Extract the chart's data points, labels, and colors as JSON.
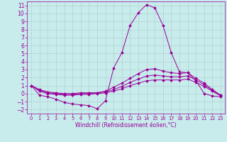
{
  "xlabel": "Windchill (Refroidissement éolien,°C)",
  "background_color": "#c8ecec",
  "line_color": "#990099",
  "grid_color": "#b0d0d0",
  "xlim": [
    -0.5,
    23.5
  ],
  "ylim": [
    -2.5,
    11.5
  ],
  "xticks": [
    0,
    1,
    2,
    3,
    4,
    5,
    6,
    7,
    8,
    9,
    10,
    11,
    12,
    13,
    14,
    15,
    16,
    17,
    18,
    19,
    20,
    21,
    22,
    23
  ],
  "yticks": [
    -2,
    -1,
    0,
    1,
    2,
    3,
    4,
    5,
    6,
    7,
    8,
    9,
    10,
    11
  ],
  "series": [
    {
      "x": [
        0,
        1,
        2,
        3,
        4,
        5,
        6,
        7,
        8,
        9,
        10,
        11,
        12,
        13,
        14,
        15,
        16,
        17,
        18,
        19,
        20,
        21,
        22,
        23
      ],
      "y": [
        1.0,
        -0.2,
        -0.4,
        -0.7,
        -1.1,
        -1.3,
        -1.4,
        -1.5,
        -1.9,
        -0.9,
        3.2,
        5.1,
        8.5,
        10.1,
        11.1,
        10.7,
        8.5,
        5.1,
        2.7,
        2.6,
        1.6,
        0.0,
        -0.3,
        -0.4
      ]
    },
    {
      "x": [
        0,
        1,
        2,
        3,
        4,
        5,
        6,
        7,
        8,
        9,
        10,
        11,
        12,
        13,
        14,
        15,
        16,
        17,
        18,
        19,
        20,
        21,
        22,
        23
      ],
      "y": [
        1.0,
        0.5,
        0.2,
        0.1,
        0.0,
        0.0,
        0.1,
        0.1,
        0.1,
        0.3,
        0.8,
        1.3,
        1.9,
        2.5,
        3.0,
        3.1,
        2.8,
        2.6,
        2.5,
        2.6,
        1.9,
        1.3,
        0.5,
        -0.2
      ]
    },
    {
      "x": [
        0,
        1,
        2,
        3,
        4,
        5,
        6,
        7,
        8,
        9,
        10,
        11,
        12,
        13,
        14,
        15,
        16,
        17,
        18,
        19,
        20,
        21,
        22,
        23
      ],
      "y": [
        1.0,
        0.4,
        0.1,
        0.0,
        -0.1,
        -0.1,
        0.0,
        0.0,
        0.1,
        0.2,
        0.5,
        0.9,
        1.4,
        1.8,
        2.2,
        2.3,
        2.2,
        2.1,
        2.1,
        2.2,
        1.7,
        1.1,
        0.4,
        -0.2
      ]
    },
    {
      "x": [
        0,
        1,
        2,
        3,
        4,
        5,
        6,
        7,
        8,
        9,
        10,
        11,
        12,
        13,
        14,
        15,
        16,
        17,
        18,
        19,
        20,
        21,
        22,
        23
      ],
      "y": [
        1.0,
        0.3,
        0.0,
        -0.1,
        -0.2,
        -0.2,
        -0.1,
        -0.1,
        0.0,
        0.1,
        0.3,
        0.6,
        1.0,
        1.3,
        1.6,
        1.7,
        1.7,
        1.7,
        1.7,
        1.8,
        1.4,
        0.9,
        0.3,
        -0.3
      ]
    }
  ]
}
